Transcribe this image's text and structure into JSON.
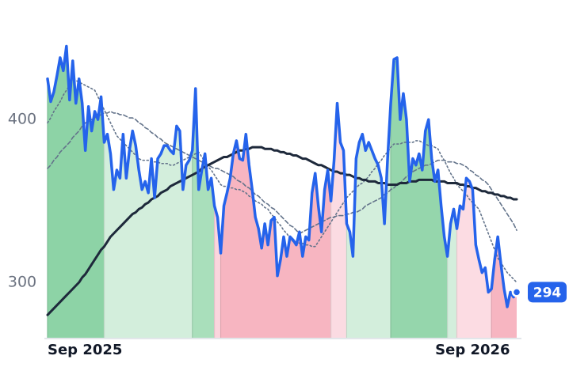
{
  "chart_data": {
    "type": "line",
    "categories": [
      "Sep 2025",
      null,
      null,
      null,
      null,
      null,
      null,
      null,
      null,
      null,
      null,
      null,
      null,
      null,
      null,
      null,
      null,
      null,
      null,
      null,
      null,
      null,
      null,
      null,
      null,
      null,
      null,
      null,
      null,
      null,
      null,
      null,
      null,
      null,
      null,
      null,
      null,
      null,
      null,
      null,
      null,
      null,
      null,
      null,
      null,
      null,
      null,
      null,
      null,
      null,
      null,
      null,
      null,
      null,
      null,
      null,
      null,
      null,
      null,
      null,
      null,
      null,
      null,
      null,
      null,
      null,
      null,
      null,
      null,
      null,
      null,
      null,
      null,
      null,
      null,
      null,
      null,
      null,
      null,
      null,
      null,
      null,
      null,
      null,
      null,
      null,
      null,
      null,
      null,
      null,
      null,
      null,
      null,
      null,
      null,
      null,
      null,
      null,
      null,
      null,
      null,
      null,
      null,
      null,
      null,
      null,
      null,
      null,
      null,
      null,
      null,
      null,
      null,
      null,
      null,
      null,
      null,
      null,
      null,
      null,
      null,
      null,
      null,
      null,
      null,
      null,
      null,
      null,
      null,
      null,
      null,
      null,
      null,
      null,
      null,
      "Sep 2026",
      null,
      null,
      null,
      null,
      null,
      null,
      null,
      null,
      null,
      null,
      null,
      null,
      null,
      null
    ],
    "series": [
      {
        "color": "#2563eb",
        "style": "solid",
        "width": 3.5,
        "values": [
          425,
          411,
          417,
          427,
          438,
          430,
          445,
          412,
          436,
          410,
          425,
          410,
          381,
          408,
          393,
          405,
          400,
          414,
          386,
          391,
          379,
          357,
          369,
          364,
          391,
          364,
          381,
          393,
          384,
          369,
          357,
          362,
          355,
          376,
          352,
          376,
          379,
          384,
          384,
          381,
          379,
          396,
          393,
          357,
          372,
          375,
          381,
          419,
          357,
          369,
          379,
          357,
          364,
          347,
          340,
          318,
          347,
          355,
          364,
          379,
          387,
          376,
          375,
          391,
          372,
          357,
          340,
          333,
          321,
          336,
          323,
          338,
          340,
          304,
          314,
          328,
          316,
          328,
          326,
          323,
          331,
          316,
          328,
          326,
          355,
          367,
          347,
          331,
          357,
          369,
          350,
          375,
          410,
          386,
          381,
          336,
          331,
          316,
          376,
          386,
          391,
          381,
          386,
          381,
          376,
          372,
          364,
          336,
          376,
          410,
          437,
          438,
          400,
          416,
          400,
          362,
          376,
          372,
          379,
          369,
          393,
          400,
          376,
          362,
          369,
          347,
          328,
          316,
          336,
          345,
          333,
          347,
          345,
          364,
          362,
          357,
          323,
          314,
          306,
          309,
          294,
          296,
          314,
          328,
          311,
          296,
          285,
          294,
          291,
          294
        ]
      },
      {
        "color": "#1e293b",
        "style": "solid",
        "width": 3,
        "values": [
          280,
          282,
          284,
          286,
          288,
          290,
          292,
          294,
          296,
          298,
          300,
          303,
          305,
          308,
          311,
          314,
          317,
          320,
          322,
          325,
          328,
          330,
          332,
          334,
          336,
          338,
          340,
          342,
          343,
          345,
          346,
          348,
          349,
          351,
          352,
          353,
          355,
          356,
          357,
          359,
          360,
          361,
          362,
          363,
          364,
          365,
          366,
          367,
          368,
          370,
          371,
          372,
          373,
          374,
          375,
          376,
          377,
          377,
          378,
          379,
          380,
          381,
          381,
          382,
          382,
          383,
          383,
          383,
          383,
          382,
          382,
          382,
          381,
          381,
          380,
          380,
          379,
          379,
          378,
          378,
          377,
          376,
          376,
          375,
          374,
          373,
          372,
          372,
          371,
          370,
          369,
          368,
          368,
          367,
          367,
          366,
          366,
          365,
          364,
          364,
          363,
          363,
          362,
          362,
          362,
          361,
          361,
          361,
          360,
          360,
          360,
          360,
          361,
          361,
          361,
          362,
          362,
          362,
          363,
          363,
          363,
          363,
          363,
          362,
          362,
          362,
          362,
          361,
          361,
          361,
          361,
          360,
          360,
          359,
          359,
          358,
          358,
          357,
          356,
          356,
          355,
          355,
          354,
          354,
          353,
          353,
          352,
          352,
          351,
          351
        ]
      },
      {
        "color": "#64748b",
        "style": "dotted",
        "width": 1.6,
        "values": [
          398,
          401,
          405,
          408,
          411,
          415,
          418,
          421,
          425,
          424,
          423,
          422,
          421,
          420,
          419,
          418,
          414,
          410,
          406,
          402,
          398,
          394,
          390,
          388,
          386,
          384,
          382,
          380,
          378,
          376,
          375,
          375,
          375,
          374,
          374,
          374,
          373,
          373,
          373,
          372,
          372,
          373,
          374,
          375,
          376,
          377,
          378,
          379,
          380,
          377,
          374,
          371,
          369,
          366,
          363,
          360,
          359,
          359,
          358,
          358,
          357,
          357,
          356,
          355,
          353,
          352,
          350,
          349,
          348,
          346,
          345,
          342,
          340,
          337,
          335,
          332,
          330,
          327,
          325,
          325,
          324,
          324,
          323,
          323,
          322,
          322,
          325,
          328,
          331,
          334,
          337,
          340,
          343,
          346,
          349,
          352,
          354,
          356,
          358,
          360,
          361,
          363,
          365,
          368,
          370,
          373,
          375,
          378,
          380,
          383,
          385,
          385,
          385,
          386,
          386,
          386,
          386,
          387,
          387,
          386,
          385,
          384,
          384,
          383,
          382,
          378,
          375,
          371,
          367,
          364,
          360,
          358,
          356,
          354,
          351,
          349,
          347,
          345,
          340,
          335,
          330,
          325,
          320,
          315,
          312,
          309,
          306,
          304,
          302,
          300
        ]
      },
      {
        "color": "#64748b",
        "style": "dashed",
        "width": 1.6,
        "values": [
          370,
          372,
          375,
          377,
          380,
          382,
          384,
          386,
          389,
          391,
          393,
          396,
          398,
          399,
          400,
          401,
          402,
          403,
          404,
          404,
          405,
          404,
          404,
          403,
          403,
          402,
          401,
          401,
          400,
          398,
          397,
          395,
          394,
          392,
          391,
          389,
          388,
          386,
          385,
          384,
          383,
          382,
          381,
          380,
          379,
          378,
          377,
          376,
          375,
          374,
          373,
          372,
          371,
          370,
          370,
          369,
          368,
          367,
          366,
          365,
          363,
          362,
          361,
          359,
          358,
          356,
          354,
          353,
          351,
          349,
          348,
          346,
          345,
          343,
          341,
          339,
          337,
          335,
          334,
          332,
          330,
          331,
          332,
          333,
          334,
          335,
          336,
          337,
          338,
          339,
          340,
          340,
          341,
          341,
          341,
          342,
          342,
          343,
          343,
          344,
          345,
          347,
          348,
          349,
          350,
          351,
          352,
          354,
          355,
          357,
          358,
          360,
          361,
          363,
          365,
          366,
          368,
          369,
          370,
          371,
          372,
          372,
          373,
          374,
          375,
          375,
          375,
          374,
          374,
          374,
          373,
          373,
          372,
          371,
          369,
          368,
          366,
          365,
          363,
          362,
          360,
          357,
          354,
          351,
          348,
          345,
          342,
          339,
          336,
          332
        ]
      }
    ],
    "bands": [
      {
        "from": 0,
        "to": 18,
        "color": "#8dd3a6"
      },
      {
        "from": 18,
        "to": 46,
        "color": "#d3eedc"
      },
      {
        "from": 46,
        "to": 53,
        "color": "#a9dfbb"
      },
      {
        "from": 53,
        "to": 55,
        "color": "#fbd5dd"
      },
      {
        "from": 55,
        "to": 90,
        "color": "#f7b5c1"
      },
      {
        "from": 90,
        "to": 95,
        "color": "#fbdbe2"
      },
      {
        "from": 95,
        "to": 109,
        "color": "#d3eedc"
      },
      {
        "from": 109,
        "to": 127,
        "color": "#95d6ac"
      },
      {
        "from": 127,
        "to": 130,
        "color": "#d3eedc"
      },
      {
        "from": 130,
        "to": 141,
        "color": "#fcdce3"
      },
      {
        "from": 141,
        "to": 149,
        "color": "#f7b5c1"
      }
    ],
    "ylim": [
      266,
      454
    ],
    "yticks": [
      300,
      400
    ]
  }
}
